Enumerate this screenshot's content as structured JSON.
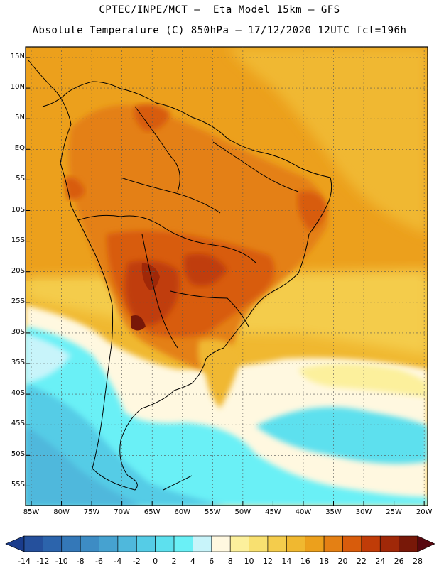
{
  "header": {
    "line1": "CPTEC/INPE/MCT –  Eta Model 15km – GFS",
    "line2": "Absolute Temperature (C) 850hPa – 17/12/2020 12UTC fct=196h"
  },
  "axes": {
    "lat_labels": [
      "15N",
      "10N",
      "5N",
      "EQ",
      "5S",
      "10S",
      "15S",
      "20S",
      "25S",
      "30S",
      "35S",
      "40S",
      "45S",
      "50S",
      "55S"
    ],
    "lon_labels": [
      "85W",
      "80W",
      "75W",
      "70W",
      "65W",
      "60W",
      "55W",
      "50W",
      "45W",
      "40W",
      "35W",
      "30W",
      "25W",
      "20W"
    ]
  },
  "colorbar": {
    "labels": [
      "-14",
      "-12",
      "-10",
      "-8",
      "-6",
      "-4",
      "-2",
      "0",
      "2",
      "4",
      "6",
      "8",
      "10",
      "12",
      "14",
      "16",
      "18",
      "20",
      "22",
      "24",
      "26",
      "28"
    ],
    "colors": [
      "#1a3c8c",
      "#25509c",
      "#2c64ac",
      "#3478b8",
      "#3d8cc4",
      "#46a2d0",
      "#4fb8dc",
      "#55cce6",
      "#5de0ee",
      "#6af0f6",
      "#c8f4fa",
      "#fff8e0",
      "#fcf09c",
      "#f8e070",
      "#f4cc4c",
      "#f0b830",
      "#eca01c",
      "#e48014",
      "#d85c0c",
      "#c03c08",
      "#a02808",
      "#781808",
      "#580810"
    ]
  },
  "chart_data": {
    "type": "heatmap",
    "title": "Absolute Temperature (C) 850hPa",
    "model": "Eta Model 15km – GFS",
    "date": "17/12/2020 12UTC",
    "forecast": "fct=196h",
    "lon_range": [
      -85,
      -20
    ],
    "lat_range": [
      -57,
      16
    ],
    "levels": [
      -14,
      -12,
      -10,
      -8,
      -6,
      -4,
      -2,
      0,
      2,
      4,
      6,
      8,
      10,
      12,
      14,
      16,
      18,
      20,
      22,
      24,
      26,
      28
    ],
    "units": "C"
  }
}
